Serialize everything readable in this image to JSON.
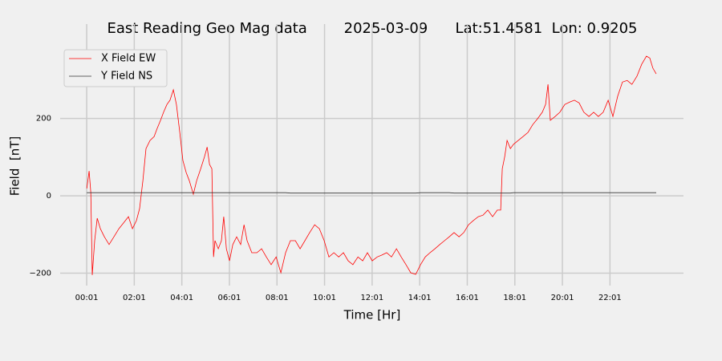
{
  "chart_data": {
    "type": "line",
    "title": "East Reading Geo Mag data        2025-03-09      Lat:51.4581  Lon: 0.9205",
    "x_label": "Time  [Hr]",
    "y_label": "Field  [nT]",
    "x": [
      0.02,
      0.12,
      0.19,
      0.25,
      0.35,
      0.46,
      0.59,
      0.76,
      0.96,
      1.16,
      1.37,
      1.57,
      1.77,
      1.94,
      2.11,
      2.24,
      2.38,
      2.51,
      2.68,
      2.85,
      2.98,
      3.12,
      3.25,
      3.39,
      3.52,
      3.66,
      3.79,
      3.93,
      4.06,
      4.2,
      4.33,
      4.5,
      4.64,
      4.81,
      4.97,
      5.08,
      5.18,
      5.28,
      5.35,
      5.41,
      5.55,
      5.68,
      5.78,
      5.89,
      6.02,
      6.16,
      6.32,
      6.49,
      6.63,
      6.76,
      6.96,
      7.17,
      7.37,
      7.57,
      7.77,
      7.98,
      8.18,
      8.38,
      8.58,
      8.79,
      8.99,
      9.19,
      9.39,
      9.6,
      9.8,
      10.0,
      10.2,
      10.41,
      10.61,
      10.81,
      11.01,
      11.21,
      11.42,
      11.62,
      11.82,
      12.02,
      12.23,
      12.43,
      12.63,
      12.83,
      13.04,
      13.24,
      13.44,
      13.64,
      13.85,
      14.05,
      14.25,
      14.45,
      14.66,
      14.86,
      15.06,
      15.26,
      15.46,
      15.67,
      15.87,
      16.07,
      16.27,
      16.48,
      16.68,
      16.88,
      17.08,
      17.28,
      17.42,
      17.49,
      17.59,
      17.69,
      17.83,
      17.96,
      18.16,
      18.36,
      18.57,
      18.77,
      18.97,
      19.17,
      19.31,
      19.41,
      19.51,
      19.71,
      19.91,
      20.12,
      20.32,
      20.52,
      20.72,
      20.92,
      21.13,
      21.33,
      21.53,
      21.73,
      21.94,
      22.14,
      22.34,
      22.54,
      22.74,
      22.94,
      23.15,
      23.35,
      23.55,
      23.69,
      23.82,
      23.96
    ],
    "series": [
      {
        "name": "X Field EW",
        "color": "#ff0000",
        "values": [
          19,
          64,
          8,
          -205,
          -116,
          -58,
          -85,
          -106,
          -126,
          -106,
          -85,
          -70,
          -54,
          -85,
          -64,
          -33,
          39,
          122,
          143,
          153,
          174,
          195,
          216,
          236,
          247,
          274,
          236,
          164,
          91,
          60,
          39,
          4,
          39,
          70,
          101,
          126,
          81,
          70,
          -158,
          -116,
          -137,
          -116,
          -54,
          -137,
          -168,
          -126,
          -106,
          -126,
          -75,
          -116,
          -147,
          -147,
          -137,
          -158,
          -178,
          -158,
          -199,
          -147,
          -116,
          -116,
          -137,
          -116,
          -95,
          -75,
          -85,
          -116,
          -158,
          -147,
          -158,
          -147,
          -168,
          -178,
          -158,
          -168,
          -147,
          -168,
          -158,
          -153,
          -147,
          -158,
          -137,
          -158,
          -178,
          -199,
          -203,
          -178,
          -158,
          -147,
          -137,
          -126,
          -116,
          -106,
          -95,
          -106,
          -95,
          -75,
          -64,
          -54,
          -50,
          -37,
          -54,
          -37,
          -37,
          70,
          101,
          143,
          122,
          133,
          143,
          153,
          164,
          184,
          199,
          216,
          236,
          288,
          195,
          205,
          216,
          236,
          242,
          247,
          240,
          216,
          205,
          216,
          205,
          216,
          247,
          205,
          257,
          294,
          298,
          288,
          309,
          340,
          361,
          356,
          330,
          315
        ]
      },
      {
        "name": "Y Field NS",
        "color": "#333333",
        "values": [
          8,
          8,
          8,
          8,
          8,
          8,
          8,
          8,
          8,
          8,
          8,
          8,
          8,
          8,
          8,
          8,
          8,
          8,
          8,
          8,
          8,
          8,
          8,
          8,
          8,
          8,
          8,
          8,
          8,
          8,
          8,
          8,
          8,
          8,
          8,
          8,
          8,
          8,
          8,
          8,
          8,
          8,
          8,
          8,
          8,
          8,
          8,
          8,
          8,
          8,
          8,
          8,
          8,
          8,
          8,
          8,
          8,
          8,
          7,
          7,
          7,
          7,
          7,
          7,
          7,
          7,
          7,
          7,
          7,
          7,
          7,
          7,
          7,
          7,
          7,
          7,
          7,
          7,
          7,
          7,
          7,
          7,
          7,
          7,
          7,
          8,
          8,
          8,
          8,
          8,
          8,
          8,
          7,
          7,
          7,
          7,
          7,
          7,
          7,
          7,
          7,
          7,
          7,
          7,
          7,
          7,
          7,
          8,
          8,
          8,
          8,
          8,
          8,
          8,
          8,
          8,
          8,
          8,
          8,
          8,
          8,
          8,
          8,
          8,
          8,
          8,
          8,
          8,
          8,
          8,
          8,
          8,
          8,
          8,
          8,
          8,
          8,
          8,
          8,
          8
        ]
      }
    ],
    "xlim": [
      -0.93,
      25.04
    ],
    "ylim": [
      -230,
      392
    ],
    "xticks": [
      {
        "value": 0.0167,
        "label": "00:01"
      },
      {
        "value": 2.0167,
        "label": "02:01"
      },
      {
        "value": 4.0167,
        "label": "04:01"
      },
      {
        "value": 6.0167,
        "label": "06:01"
      },
      {
        "value": 8.0167,
        "label": "08:01"
      },
      {
        "value": 10.0167,
        "label": "10:01"
      },
      {
        "value": 12.0167,
        "label": "12:01"
      },
      {
        "value": 14.0167,
        "label": "14:01"
      },
      {
        "value": 16.0167,
        "label": "16:01"
      },
      {
        "value": 18.0167,
        "label": "18:01"
      },
      {
        "value": 20.0167,
        "label": "20:01"
      },
      {
        "value": 22.0167,
        "label": "22:01"
      }
    ],
    "yticks": [
      {
        "value": -200,
        "label": "−200"
      },
      0,
      200
    ],
    "grid": true,
    "legend": "upper left"
  }
}
